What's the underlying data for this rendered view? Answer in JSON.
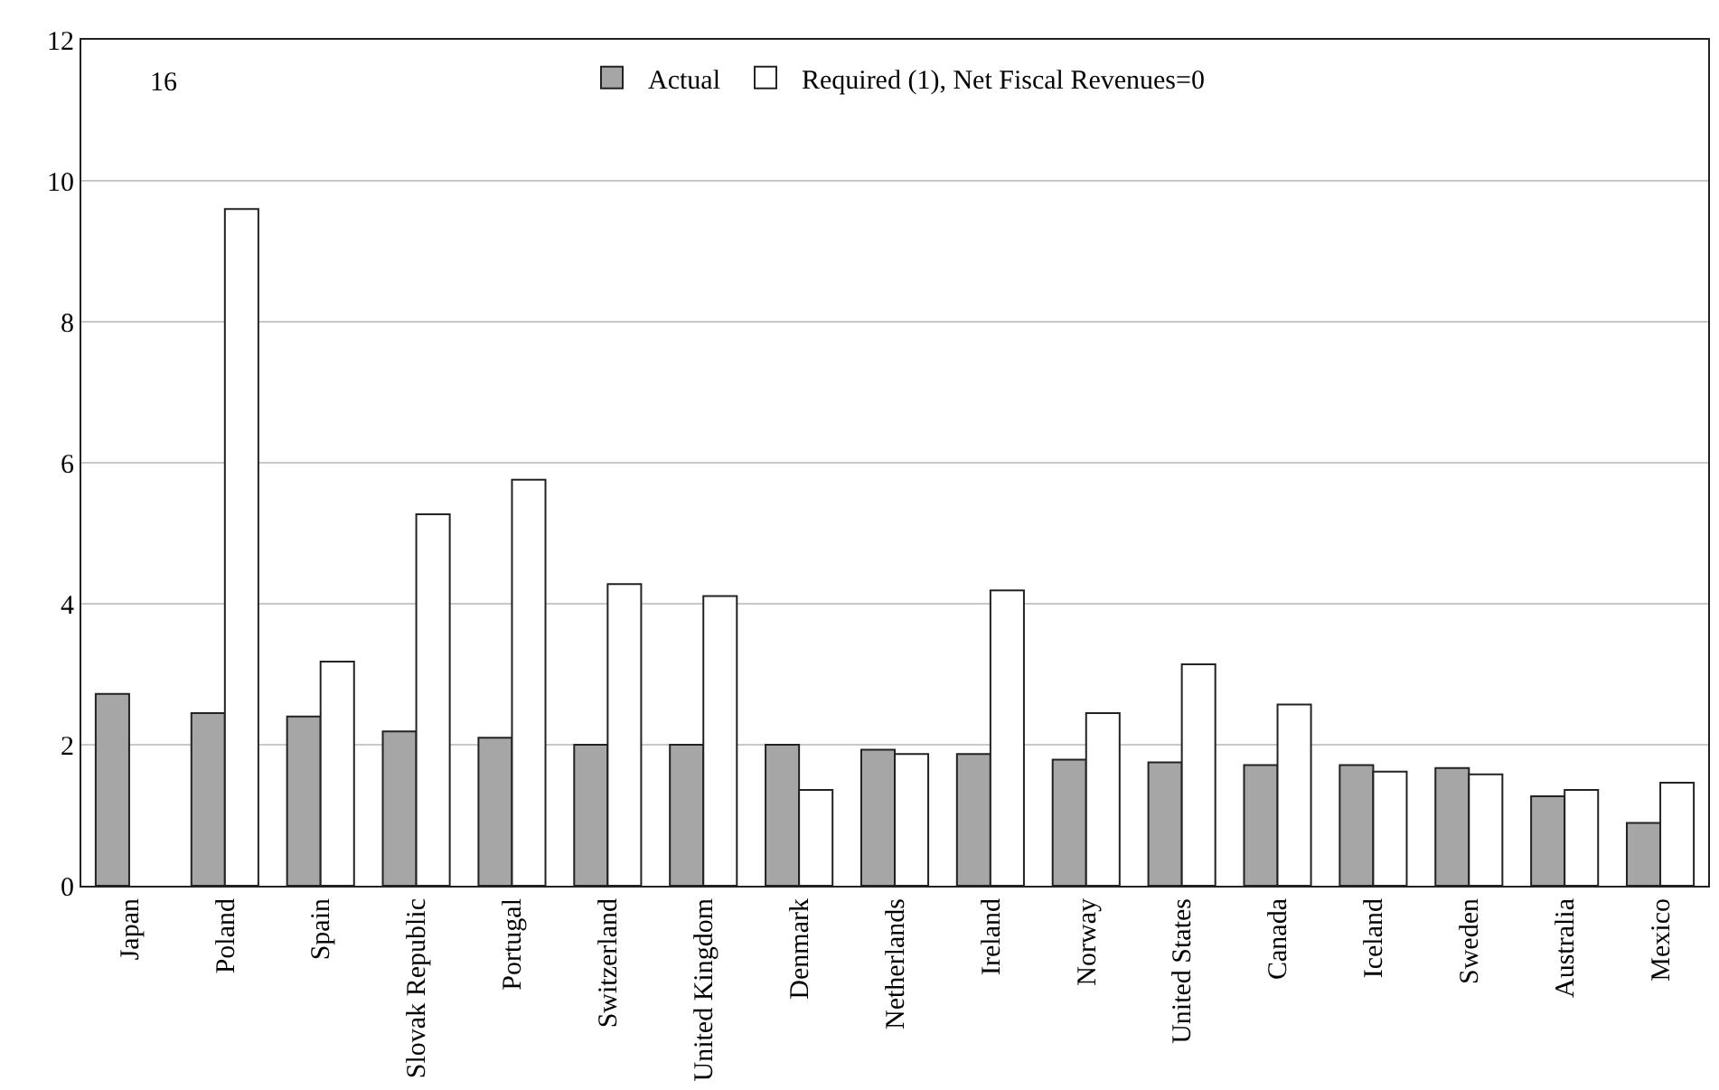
{
  "chart_data": {
    "type": "bar",
    "categories": [
      "Japan",
      "Poland",
      "Spain",
      "Slovak Republic",
      "Portugal",
      "Switzerland",
      "United Kingdom",
      "Denmark",
      "Netherlands",
      "Ireland",
      "Norway",
      "United States",
      "Canada",
      "Iceland",
      "Sweden",
      "Australia",
      "Mexico"
    ],
    "series": [
      {
        "name": "Actual",
        "color": "#a6a6a6",
        "values": [
          2.72,
          2.45,
          2.4,
          2.19,
          2.1,
          2.0,
          2.0,
          2.0,
          1.93,
          1.87,
          1.79,
          1.75,
          1.71,
          1.71,
          1.67,
          1.27,
          0.89
        ]
      },
      {
        "name": "Required (1), Net Fiscal Revenues=0",
        "color": "#ffffff",
        "values": [
          null,
          9.6,
          3.18,
          5.27,
          5.76,
          4.28,
          4.11,
          1.36,
          1.87,
          4.19,
          2.45,
          3.14,
          2.57,
          1.62,
          1.58,
          1.36,
          1.46
        ]
      }
    ],
    "annotations": [
      "16"
    ],
    "ylim": [
      0,
      12
    ],
    "yticks": [
      0,
      2,
      4,
      6,
      8,
      10,
      12
    ],
    "grid": "y",
    "legend": "top"
  }
}
